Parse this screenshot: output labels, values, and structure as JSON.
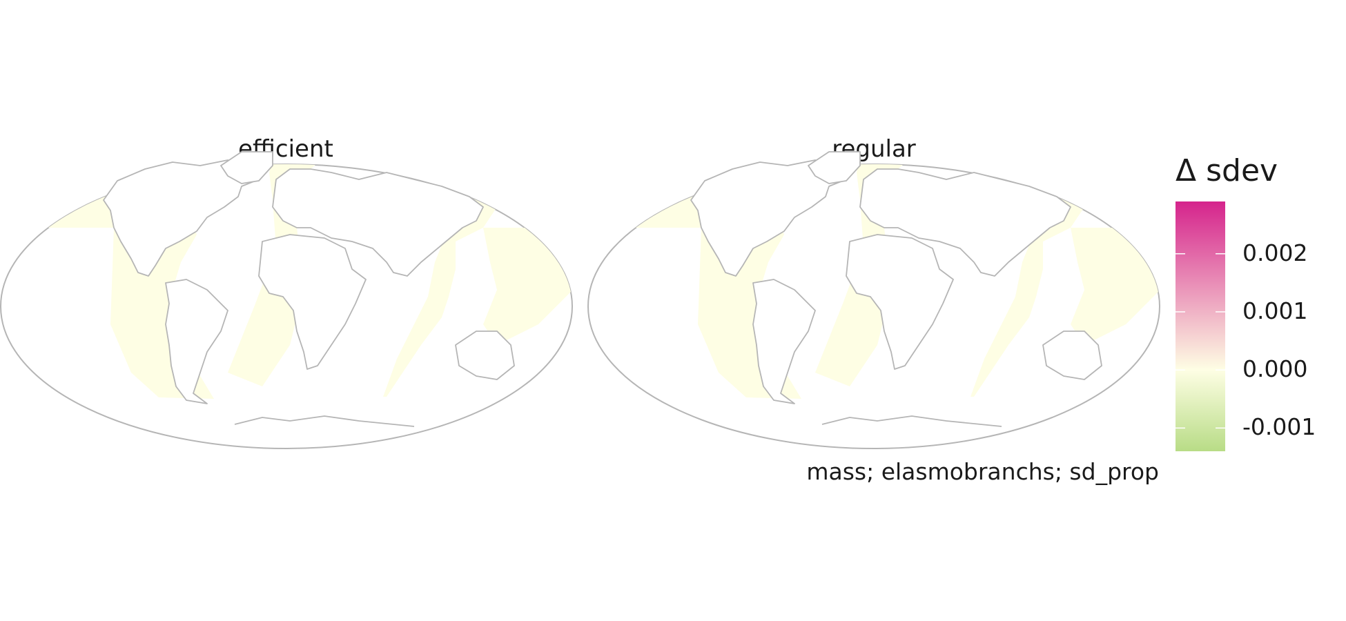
{
  "panels": [
    {
      "title": "efficient"
    },
    {
      "title": "regular"
    }
  ],
  "caption": "mass; elasmobranchs; sd_prop",
  "legend": {
    "title": "Δ sdev",
    "ticks": [
      {
        "label": "0.002",
        "value": 0.002
      },
      {
        "label": "0.001",
        "value": 0.001
      },
      {
        "label": "0.000",
        "value": 0.0
      },
      {
        "label": "-0.001",
        "value": -0.001
      }
    ],
    "range": [
      -0.0014,
      0.0029
    ],
    "colors": {
      "low": "#b8dc86",
      "mid": "#fefee4",
      "high": "#d5248c"
    }
  },
  "colors": {
    "ocean_fill": "#fefee4",
    "land_fill": "#ffffff",
    "border": "#b5b5b5"
  }
}
